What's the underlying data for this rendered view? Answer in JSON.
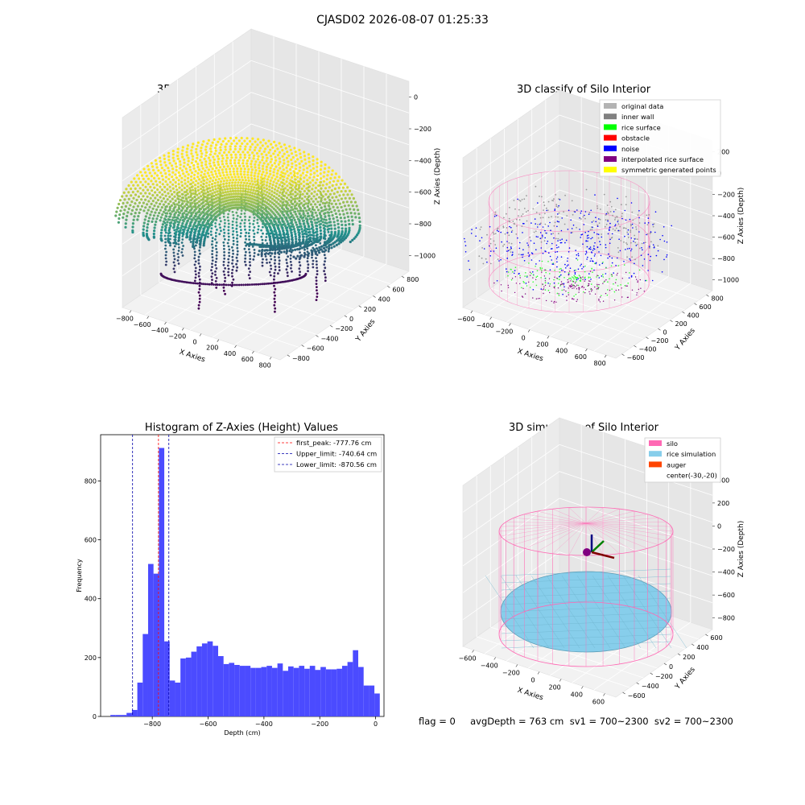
{
  "suptitle": "CJASD02 2026-08-07 01:25:33",
  "footer": "flag = 0     avgDepth = 763 cm  sv1 = 700~2300  sv2 = 700~2300",
  "colors": {
    "hist_bar": "#4b4bff",
    "first_peak": "#ff0000",
    "limit": "#0000aa",
    "viridis_low": "#440154",
    "viridis_mid": "#21918c",
    "viridis_high": "#fde725",
    "silo": "#ff69b4",
    "rice": "#87ceeb"
  },
  "chart_data": [
    {
      "type": "scatter",
      "title": "3D Plot of Silo Interior(row data)",
      "xlabel": "X Axies",
      "ylabel": "Y Axies",
      "zlabel": "Z Axies (Depth)",
      "xticks": [
        "−800",
        "−600",
        "−400",
        "−200",
        "0",
        "200",
        "400",
        "600",
        "800"
      ],
      "yticks": [
        "−800",
        "−600",
        "−400",
        "−200",
        "0",
        "200",
        "400",
        "600",
        "800"
      ],
      "zticks": [
        "0",
        "−200",
        "−400",
        "−600",
        "−800",
        "−1000"
      ],
      "grid": true,
      "colormap": "viridis"
    },
    {
      "type": "scatter",
      "title": "3D classify of Silo Interior",
      "xlabel": "X Axies",
      "ylabel": "Y Axies",
      "zlabel": "Z Axies (Depth)",
      "xticks": [
        "−600",
        "−400",
        "−200",
        "0",
        "200",
        "400",
        "600",
        "800"
      ],
      "yticks": [
        "−600",
        "−400",
        "−200",
        "0",
        "200",
        "400",
        "600",
        "800"
      ],
      "zticks": [
        "200",
        "0",
        "−200",
        "−400",
        "−600",
        "−800",
        "−1000"
      ],
      "grid": true,
      "legend": [
        {
          "name": "original data",
          "color": "#b3b3b3"
        },
        {
          "name": "inner wall",
          "color": "#808080"
        },
        {
          "name": "rice surface",
          "color": "#00ff00"
        },
        {
          "name": "obstacle",
          "color": "#ff0000"
        },
        {
          "name": "noise",
          "color": "#0000ff"
        },
        {
          "name": "interpolated rice surface",
          "color": "#800080"
        },
        {
          "name": "symmetric generated points",
          "color": "#ffff00"
        }
      ],
      "legend_position": "upper right"
    },
    {
      "type": "bar",
      "title": "Histogram of Z-Axies (Height) Values",
      "xlabel": "Depth (cm)",
      "ylabel": "Frequency",
      "xlim": [
        -985,
        30
      ],
      "ylim": [
        0,
        957
      ],
      "xticks": [
        -800,
        -600,
        -400,
        -200,
        0
      ],
      "yticks": [
        0,
        200,
        400,
        600,
        800
      ],
      "bin_width": 19.3,
      "bin_start": -950,
      "values": [
        5,
        5,
        5,
        12,
        22,
        115,
        280,
        518,
        485,
        912,
        255,
        122,
        115,
        197,
        200,
        220,
        238,
        248,
        255,
        240,
        205,
        178,
        182,
        175,
        172,
        172,
        165,
        165,
        168,
        172,
        165,
        180,
        155,
        170,
        165,
        172,
        162,
        172,
        158,
        168,
        160,
        160,
        162,
        172,
        185,
        225,
        168,
        105,
        105,
        78
      ],
      "vlines": [
        {
          "label": "first_peak: -777.76 cm",
          "x": -777.76,
          "color": "#ff0000"
        },
        {
          "label": "Upper_limit: -740.64 cm",
          "x": -740.64,
          "color": "#0000aa"
        },
        {
          "label": "Lower_limit: -870.56 cm",
          "x": -870.56,
          "color": "#0000aa"
        }
      ],
      "legend_position": "upper right"
    },
    {
      "type": "scatter",
      "title": "3D simulation of Silo Interior",
      "xlabel": "X Axies",
      "ylabel": "Y Axies",
      "zlabel": "Z Axies (Depth)",
      "xticks": [
        "−600",
        "−400",
        "−200",
        "0",
        "200",
        "400",
        "600"
      ],
      "yticks": [
        "−600",
        "−400",
        "−200",
        "0",
        "200",
        "400",
        "600"
      ],
      "zticks": [
        "400",
        "200",
        "0",
        "−200",
        "−400",
        "−600",
        "−800"
      ],
      "grid": true,
      "legend": [
        {
          "name": "silo",
          "color": "#ff69b4"
        },
        {
          "name": "rice simulation",
          "color": "#87ceeb"
        },
        {
          "name": "auger",
          "color": "#ff4500"
        },
        {
          "name": "center(-30,-20)",
          "color": ""
        }
      ],
      "legend_position": "upper right"
    }
  ]
}
